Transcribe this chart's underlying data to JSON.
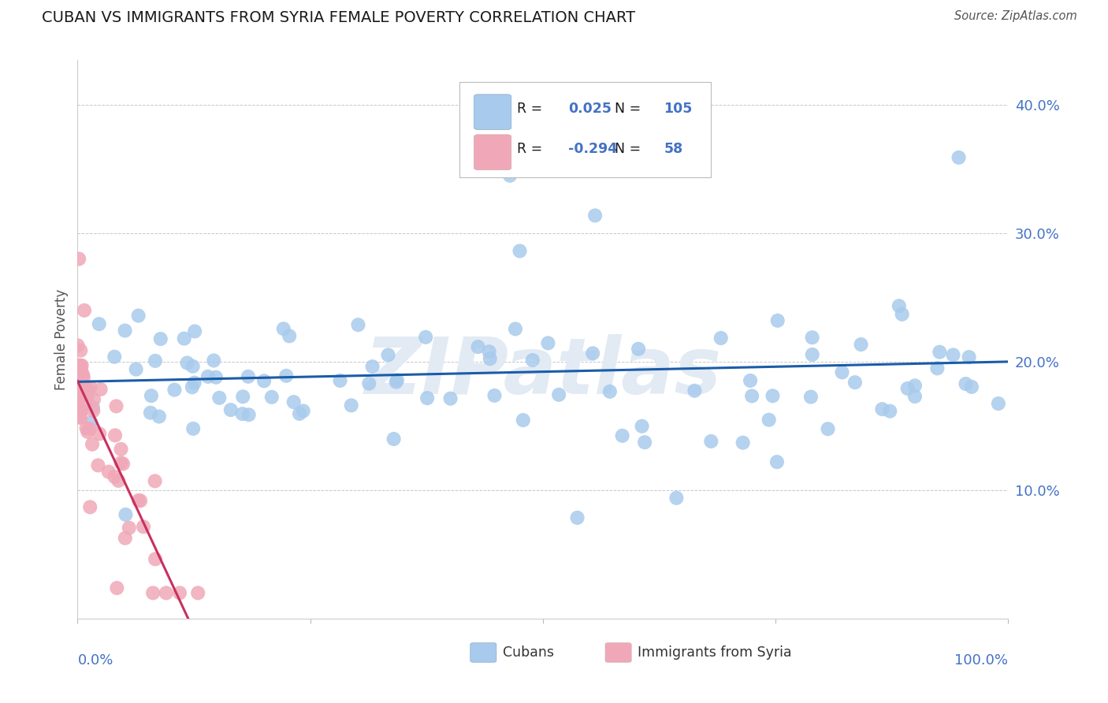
{
  "title": "CUBAN VS IMMIGRANTS FROM SYRIA FEMALE POVERTY CORRELATION CHART",
  "source": "Source: ZipAtlas.com",
  "ylabel": "Female Poverty",
  "ytick_labels": [
    "10.0%",
    "20.0%",
    "30.0%",
    "40.0%"
  ],
  "ytick_values": [
    0.1,
    0.2,
    0.3,
    0.4
  ],
  "ylim": [
    0.0,
    0.435
  ],
  "xlim": [
    0.0,
    1.0
  ],
  "cubans_R": 0.025,
  "cubans_N": 105,
  "syria_R": -0.294,
  "syria_N": 58,
  "blue_color": "#A8CAEC",
  "pink_color": "#F0A8B8",
  "blue_line_color": "#1A5CA8",
  "pink_line_color": "#C83060",
  "background_color": "#FFFFFF",
  "grid_color": "#C8C8C8",
  "watermark_color": "#E2EAF4",
  "title_color": "#1A1A1A",
  "axis_label_color": "#4472C4",
  "legend_text_color": "#1A1A1A",
  "legend_value_color": "#4472C4",
  "source_color": "#555555",
  "ylabel_color": "#555555",
  "legend_label_1": "Cubans",
  "legend_label_2": "Immigrants from Syria"
}
